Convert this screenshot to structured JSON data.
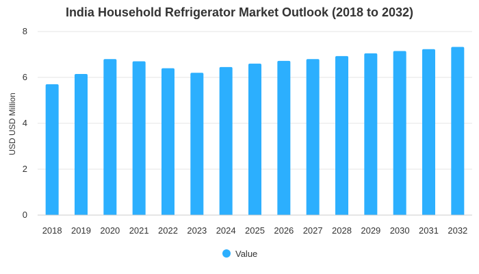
{
  "chart_data": {
    "type": "bar",
    "title": "India Household Refrigerator Market Outlook (2018 to 2032)",
    "xlabel": "",
    "ylabel": "USD USD Million",
    "ylim": [
      0,
      8
    ],
    "yticks": [
      0,
      2,
      4,
      6,
      8
    ],
    "grid": true,
    "legend_position": "bottom",
    "categories": [
      "2018",
      "2019",
      "2020",
      "2021",
      "2022",
      "2023",
      "2024",
      "2025",
      "2026",
      "2027",
      "2028",
      "2029",
      "2030",
      "2031",
      "2032"
    ],
    "series": [
      {
        "name": "Value",
        "color": "#2caffe",
        "values": [
          5.7,
          6.15,
          6.8,
          6.7,
          6.4,
          6.2,
          6.45,
          6.6,
          6.72,
          6.8,
          6.93,
          7.05,
          7.15,
          7.23,
          7.33
        ]
      }
    ]
  }
}
